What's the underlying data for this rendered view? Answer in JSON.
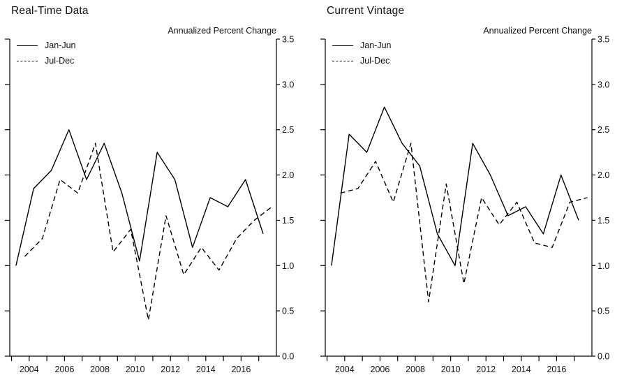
{
  "colors": {
    "line": "#000000",
    "axis": "#000000",
    "background": "#ffffff"
  },
  "chart_data": [
    {
      "type": "line",
      "title": "Real-Time Data",
      "caption": "Annualized Percent Change",
      "ylim": [
        0,
        3.5
      ],
      "ytick_step": 0.5,
      "x_domain": [
        2002.9,
        2018.0
      ],
      "x_years": [
        2003,
        2004,
        2005,
        2006,
        2007,
        2008,
        2009,
        2010,
        2011,
        2012,
        2013,
        2014,
        2015,
        2016,
        2017
      ],
      "x_ticks": [
        2003,
        2004,
        2005,
        2006,
        2007,
        2008,
        2009,
        2010,
        2011,
        2012,
        2013,
        2014,
        2015,
        2016,
        2017
      ],
      "xtick_labels": [
        "2004",
        "2006",
        "2008",
        "2010",
        "2012",
        "2014",
        "2016"
      ],
      "legend_position": "top-left",
      "grid": false,
      "series": [
        {
          "name": "Jan-Jun",
          "style": "solid",
          "x_offset": 0.25,
          "values": [
            1.0,
            1.85,
            2.05,
            2.5,
            1.95,
            2.35,
            1.8,
            1.05,
            2.25,
            1.95,
            1.2,
            1.75,
            1.65,
            1.95,
            1.35
          ]
        },
        {
          "name": "Jul-Dec",
          "style": "dashed",
          "x_offset": 0.75,
          "values": [
            1.1,
            1.3,
            1.95,
            1.8,
            2.35,
            1.15,
            1.4,
            0.4,
            1.55,
            0.9,
            1.2,
            0.95,
            1.3,
            1.5,
            1.65
          ]
        }
      ]
    },
    {
      "type": "line",
      "title": "Current Vintage",
      "caption": "Annualized Percent Change",
      "ylim": [
        0,
        3.5
      ],
      "ytick_step": 0.5,
      "x_domain": [
        2002.9,
        2018.0
      ],
      "x_years": [
        2003,
        2004,
        2005,
        2006,
        2007,
        2008,
        2009,
        2010,
        2011,
        2012,
        2013,
        2014,
        2015,
        2016,
        2017
      ],
      "x_ticks": [
        2003,
        2004,
        2005,
        2006,
        2007,
        2008,
        2009,
        2010,
        2011,
        2012,
        2013,
        2014,
        2015,
        2016,
        2017
      ],
      "xtick_labels": [
        "2004",
        "2006",
        "2008",
        "2010",
        "2012",
        "2014",
        "2016"
      ],
      "legend_position": "top-left",
      "grid": false,
      "series": [
        {
          "name": "Jan-Jun",
          "style": "solid",
          "x_offset": 0.25,
          "values": [
            1.0,
            2.45,
            2.25,
            2.75,
            2.35,
            2.1,
            1.35,
            1.0,
            2.35,
            2.0,
            1.55,
            1.65,
            1.35,
            2.0,
            1.5
          ]
        },
        {
          "name": "Jul-Dec",
          "style": "dashed",
          "x_offset": 0.75,
          "values": [
            1.8,
            1.85,
            2.15,
            1.7,
            2.35,
            0.6,
            1.9,
            0.8,
            1.75,
            1.45,
            1.7,
            1.25,
            1.2,
            1.7,
            1.75
          ]
        }
      ]
    }
  ]
}
